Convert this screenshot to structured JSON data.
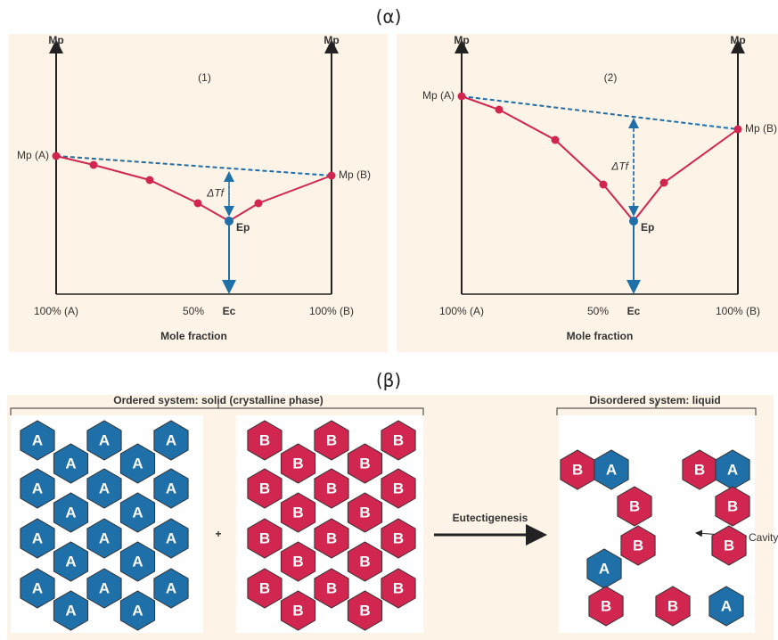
{
  "alpha_label": "(α)",
  "beta_label": "(β)",
  "panels": [
    {
      "label": "(1)",
      "y_axis_left": "Mp",
      "y_axis_right": "Mp",
      "mp_a": "Mp (A)",
      "mp_b": "Mp (B)",
      "delta_tf": "ΔTf",
      "ep": "Ep",
      "x_left": "100% (A)",
      "x_mid": "50%",
      "x_ec": "Ec",
      "x_right": "100% (B)",
      "x_title": "Mole fraction"
    },
    {
      "label": "(2)",
      "y_axis_left": "Mp",
      "y_axis_right": "Mp",
      "mp_a": "Mp (A)",
      "mp_b": "Mp (B)",
      "delta_tf": "ΔTf",
      "ep": "Ep",
      "x_left": "100% (A)",
      "x_mid": "50%",
      "x_ec": "Ec",
      "x_right": "100% (B)",
      "x_title": "Mole fraction"
    }
  ],
  "ordered_title": "Ordered system: solid (crystalline phase)",
  "disordered_title": "Disordered system: liquid",
  "plus": "+",
  "process": "Eutectigenesis",
  "cavity": "Cavity",
  "hex_labels": {
    "a": "A",
    "b": "B"
  }
}
